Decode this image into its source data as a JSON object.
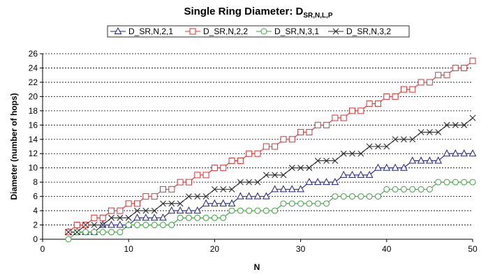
{
  "chart_data": {
    "type": "line",
    "title": "Single Ring Diameter: D",
    "title_subscript": "SR,N,L,P",
    "xlabel": "N",
    "ylabel": "Diameter (number of hops)",
    "xlim": [
      0,
      50
    ],
    "ylim": [
      0,
      26
    ],
    "xticks": [
      0,
      10,
      20,
      30,
      40,
      50
    ],
    "yticks": [
      0,
      2,
      4,
      6,
      8,
      10,
      12,
      14,
      16,
      18,
      20,
      22,
      24,
      26
    ],
    "grid": "horizontal dashed",
    "legend_position": "top",
    "x": [
      3,
      4,
      5,
      6,
      7,
      8,
      9,
      10,
      11,
      12,
      13,
      14,
      15,
      16,
      17,
      18,
      19,
      20,
      21,
      22,
      23,
      24,
      25,
      26,
      27,
      28,
      29,
      30,
      31,
      32,
      33,
      34,
      35,
      36,
      37,
      38,
      39,
      40,
      41,
      42,
      43,
      44,
      45,
      46,
      47,
      48,
      49,
      50
    ],
    "series": [
      {
        "name": "D_SR,N,2,1",
        "color": "#1f1f8f",
        "marker": "triangle",
        "values": [
          1,
          1,
          1,
          1,
          2,
          2,
          2,
          2,
          3,
          3,
          3,
          3,
          4,
          4,
          4,
          4,
          5,
          5,
          5,
          5,
          6,
          6,
          6,
          6,
          7,
          7,
          7,
          7,
          8,
          8,
          8,
          8,
          9,
          9,
          9,
          9,
          10,
          10,
          10,
          10,
          11,
          11,
          11,
          11,
          12,
          12,
          12,
          12
        ]
      },
      {
        "name": "D_SR,N,2,2",
        "color": "#e03030",
        "marker": "square",
        "values": [
          1,
          2,
          2,
          3,
          3,
          4,
          4,
          5,
          5,
          6,
          6,
          7,
          7,
          8,
          8,
          9,
          9,
          10,
          10,
          11,
          11,
          12,
          12,
          13,
          13,
          14,
          14,
          15,
          15,
          16,
          16,
          17,
          17,
          18,
          18,
          19,
          19,
          20,
          20,
          21,
          21,
          22,
          22,
          23,
          23,
          24,
          24,
          25
        ]
      },
      {
        "name": "D_SR,N,3,1",
        "color": "#3aa13a",
        "marker": "circle",
        "values": [
          0,
          1,
          1,
          1,
          1,
          1,
          1,
          2,
          2,
          2,
          2,
          2,
          2,
          3,
          3,
          3,
          3,
          3,
          3,
          4,
          4,
          4,
          4,
          4,
          4,
          5,
          5,
          5,
          5,
          5,
          5,
          6,
          6,
          6,
          6,
          6,
          6,
          7,
          7,
          7,
          7,
          7,
          7,
          8,
          8,
          8,
          8,
          8
        ]
      },
      {
        "name": "D_SR,N,3,2",
        "color": "#2a2a2a",
        "marker": "x",
        "values": [
          1,
          1,
          2,
          2,
          2,
          3,
          3,
          3,
          4,
          4,
          4,
          5,
          5,
          5,
          6,
          6,
          6,
          7,
          7,
          7,
          8,
          8,
          8,
          9,
          9,
          9,
          10,
          10,
          10,
          11,
          11,
          11,
          12,
          12,
          12,
          13,
          13,
          13,
          14,
          14,
          14,
          15,
          15,
          15,
          16,
          16,
          16,
          17
        ]
      }
    ]
  }
}
